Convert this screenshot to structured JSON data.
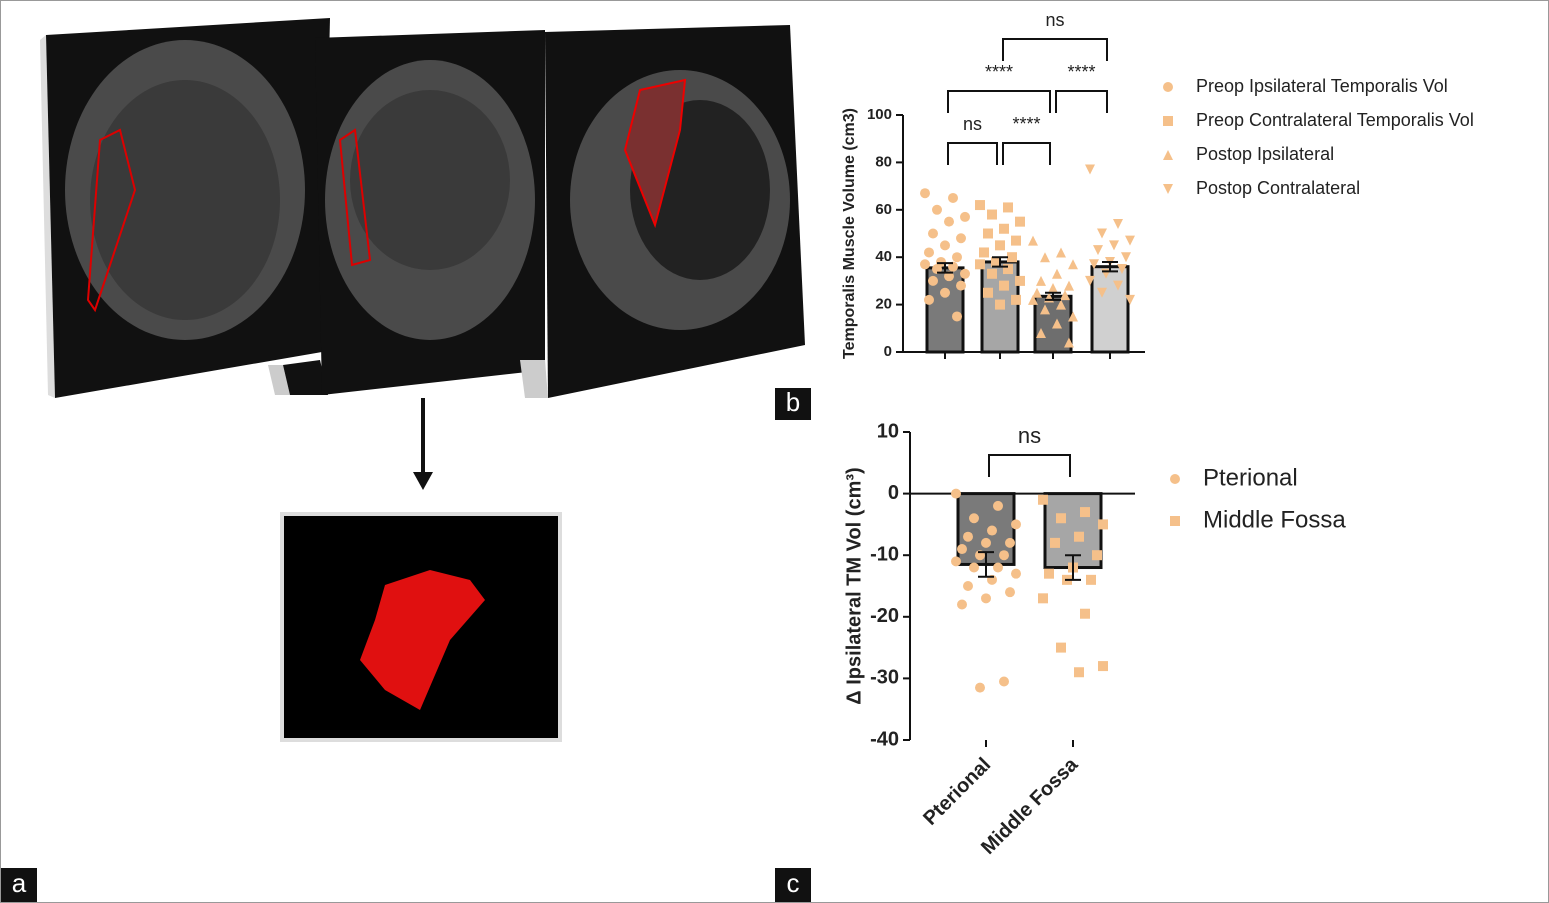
{
  "panel_labels": [
    "a",
    "b",
    "c"
  ],
  "chart_data": [
    {
      "type": "bar",
      "ylabel": "Temporalis Muscle Volume (cm3)",
      "categories": [
        null,
        null,
        null,
        null
      ],
      "values": [
        35.5,
        38,
        23.5,
        36
      ],
      "errors": [
        2,
        2,
        1.5,
        2
      ],
      "bar_colors": [
        "#7a7a7a",
        "#a6a6a6",
        "#6e6e6e",
        "#d0d0d0"
      ],
      "point_series": [
        {
          "name": "Preop Ipsilateral Temporalis Vol",
          "marker": "circle",
          "color": "#f5c08a",
          "values": [
            67,
            65,
            60,
            57,
            55,
            50,
            48,
            45,
            42,
            40,
            38,
            37,
            36,
            35,
            33,
            32,
            30,
            28,
            25,
            22,
            15
          ]
        },
        {
          "name": "Preop Contralateral Temporalis Vol",
          "marker": "square",
          "color": "#f5c08a",
          "values": [
            62,
            61,
            58,
            55,
            52,
            50,
            47,
            45,
            42,
            40,
            38,
            37,
            35,
            33,
            30,
            28,
            25,
            22,
            20
          ]
        },
        {
          "name": "Postop Ipsilateral",
          "marker": "triangle-up",
          "color": "#f5c08a",
          "values": [
            47,
            42,
            40,
            37,
            33,
            30,
            28,
            27,
            25,
            24,
            23,
            22,
            20,
            18,
            15,
            12,
            8,
            4
          ]
        },
        {
          "name": "Postop Contralateral",
          "marker": "triangle-down",
          "color": "#f5c08a",
          "values": [
            77,
            54,
            50,
            47,
            45,
            43,
            40,
            38,
            37,
            35,
            33,
            30,
            28,
            25,
            22
          ]
        }
      ],
      "ylim": [
        0,
        100
      ],
      "yticks": [
        0,
        20,
        40,
        60,
        80,
        100
      ],
      "annotations": [
        {
          "pair": [
            0,
            1
          ],
          "label": "ns"
        },
        {
          "pair": [
            1,
            2
          ],
          "label": "****"
        },
        {
          "pair": [
            0,
            2
          ],
          "label": "****"
        },
        {
          "pair": [
            2,
            3
          ],
          "label": "****"
        },
        {
          "pair": [
            1,
            3
          ],
          "label": "ns"
        }
      ]
    },
    {
      "type": "bar",
      "ylabel": "Δ Ipsilateral TM Vol (cm³)",
      "categories": [
        "Pterional",
        "Middle Fossa"
      ],
      "values": [
        -11.5,
        -12
      ],
      "errors": [
        2,
        2
      ],
      "bar_colors": [
        "#7a7a7a",
        "#a6a6a6"
      ],
      "point_series": [
        {
          "name": "Pterional",
          "marker": "circle",
          "color": "#f5c08a",
          "values": [
            0,
            -2,
            -4,
            -5,
            -6,
            -7,
            -8,
            -8,
            -9,
            -10,
            -10,
            -11,
            -12,
            -12,
            -13,
            -14,
            -15,
            -16,
            -17,
            -18,
            -30.5,
            -31.5
          ]
        },
        {
          "name": "Middle Fossa",
          "marker": "square",
          "color": "#f5c08a",
          "values": [
            -1,
            -3,
            -4,
            -5,
            -7,
            -8,
            -10,
            -12,
            -13,
            -14,
            -14,
            -17,
            -19.5,
            -25,
            -28,
            -29
          ]
        }
      ],
      "ylim": [
        -40,
        10
      ],
      "yticks": [
        -40,
        -30,
        -20,
        -10,
        0,
        10
      ],
      "annotations": [
        {
          "pair": [
            0,
            1
          ],
          "label": "ns"
        }
      ]
    }
  ]
}
